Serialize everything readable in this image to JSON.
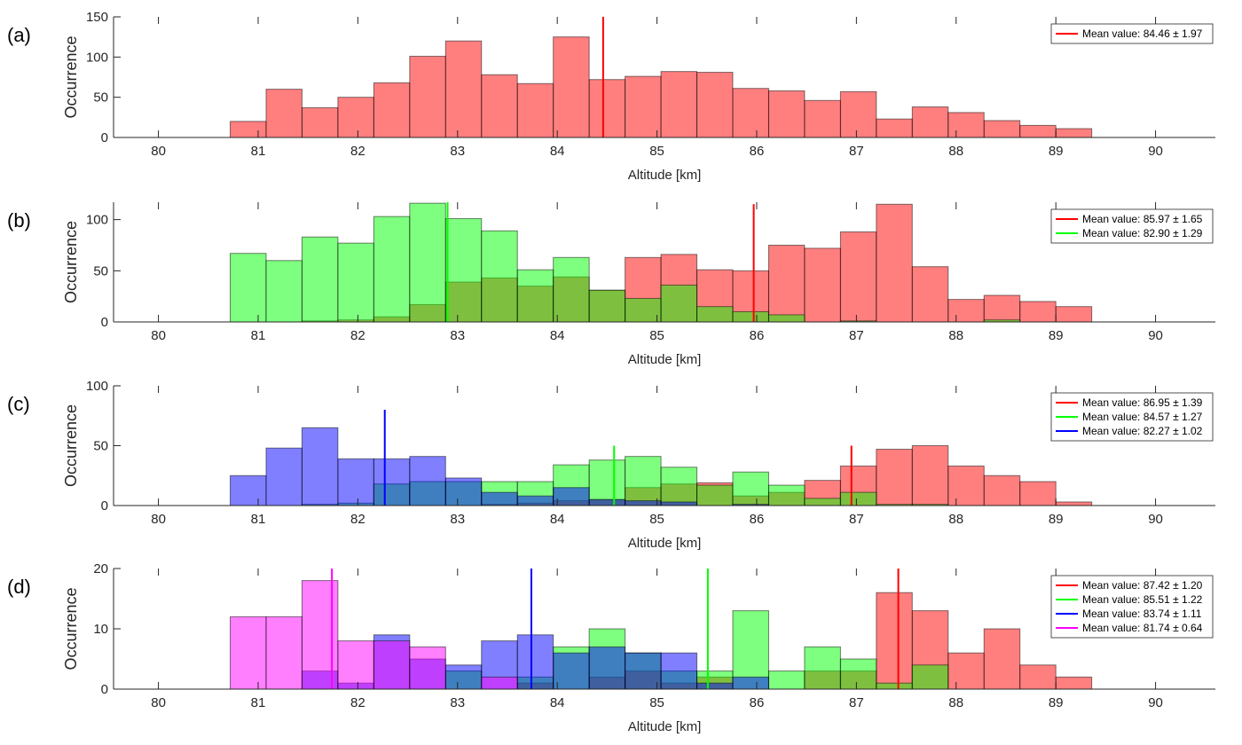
{
  "chart_data": [
    {
      "type": "bar",
      "panel_label": "(a)",
      "xlabel": "Altitude [km]",
      "ylabel": "Occurrence",
      "xlim": [
        79.55,
        90.6
      ],
      "ylim": [
        0,
        150
      ],
      "x_ticks": [
        80,
        81,
        82,
        83,
        84,
        85,
        86,
        87,
        88,
        89,
        90
      ],
      "y_ticks": [
        0,
        50,
        100,
        150
      ],
      "bin_start": 80.72,
      "bin_width": 0.36,
      "zero_range": [
        79.64,
        89.72
      ],
      "legend_position": "top-right",
      "series": [
        {
          "name": "Mean value: 84.46 ± 1.97",
          "color": "#ff0000",
          "mean": 84.46,
          "mean_line_top": 150,
          "values": [
            20,
            60,
            37,
            50,
            68,
            101,
            120,
            78,
            67,
            125,
            72,
            76,
            82,
            81,
            61,
            58,
            46,
            57,
            23,
            38,
            31,
            21,
            15,
            11
          ]
        }
      ]
    },
    {
      "type": "bar",
      "panel_label": "(b)",
      "xlabel": "Altitude [km]",
      "ylabel": "Occurrence",
      "xlim": [
        79.55,
        90.6
      ],
      "ylim": [
        0,
        117
      ],
      "x_ticks": [
        80,
        81,
        82,
        83,
        84,
        85,
        86,
        87,
        88,
        89,
        90
      ],
      "y_ticks": [
        0,
        50,
        100
      ],
      "bin_start": 80.72,
      "bin_width": 0.36,
      "zero_range": [
        79.64,
        89.72
      ],
      "legend_position": "top-right",
      "series": [
        {
          "name": "Mean value: 85.97 ± 1.65",
          "color": "#ff0000",
          "mean": 85.97,
          "mean_line_top": 115,
          "values": [
            0,
            0,
            1,
            2,
            5,
            17,
            39,
            43,
            35,
            44,
            31,
            63,
            66,
            51,
            50,
            75,
            72,
            88,
            115,
            54,
            22,
            26,
            20,
            15
          ]
        },
        {
          "name": "Mean value: 82.90 ± 1.29",
          "color": "#00ff00",
          "mean": 82.9,
          "mean_line_top": 117,
          "values": [
            67,
            60,
            83,
            77,
            103,
            116,
            101,
            89,
            51,
            63,
            31,
            23,
            36,
            15,
            10,
            7,
            0,
            1,
            0,
            0,
            0,
            2,
            0,
            0
          ]
        }
      ]
    },
    {
      "type": "bar",
      "panel_label": "(c)",
      "xlabel": "Altitude [km]",
      "ylabel": "Occurrence",
      "xlim": [
        79.55,
        90.6
      ],
      "ylim": [
        0,
        100
      ],
      "x_ticks": [
        80,
        81,
        82,
        83,
        84,
        85,
        86,
        87,
        88,
        89,
        90
      ],
      "y_ticks": [
        0,
        50,
        100
      ],
      "bin_start": 80.72,
      "bin_width": 0.36,
      "zero_range": [
        79.64,
        89.72
      ],
      "legend_position": "top-right",
      "series": [
        {
          "name": "Mean value: 86.95 ± 1.39",
          "color": "#ff0000",
          "mean": 86.95,
          "mean_line_top": 50,
          "values": [
            0,
            0,
            0,
            0,
            0,
            0,
            0,
            1,
            2,
            4,
            5,
            15,
            18,
            19,
            8,
            11,
            21,
            33,
            47,
            50,
            33,
            25,
            20,
            3
          ]
        },
        {
          "name": "Mean value: 84.57 ± 1.27",
          "color": "#00ff00",
          "mean": 84.57,
          "mean_line_top": 50,
          "values": [
            0,
            0,
            1,
            2,
            18,
            20,
            20,
            20,
            20,
            34,
            38,
            41,
            32,
            17,
            28,
            17,
            6,
            11,
            1,
            1,
            0,
            0,
            0,
            0
          ]
        },
        {
          "name": "Mean value: 82.27 ± 1.02",
          "color": "#0000ff",
          "mean": 82.27,
          "mean_line_top": 80,
          "values": [
            25,
            48,
            65,
            39,
            39,
            41,
            23,
            11,
            8,
            15,
            5,
            4,
            3,
            0,
            1,
            0,
            0,
            0,
            0,
            0,
            0,
            0,
            0,
            0
          ]
        }
      ]
    },
    {
      "type": "bar",
      "panel_label": "(d)",
      "xlabel": "Altitude [km]",
      "ylabel": "Occurrence",
      "xlim": [
        79.55,
        90.6
      ],
      "ylim": [
        0,
        20
      ],
      "x_ticks": [
        80,
        81,
        82,
        83,
        84,
        85,
        86,
        87,
        88,
        89,
        90
      ],
      "y_ticks": [
        0,
        10,
        20
      ],
      "bin_start": 80.72,
      "bin_width": 0.36,
      "zero_range": [
        79.64,
        89.72
      ],
      "legend_position": "top-right",
      "series": [
        {
          "name": "Mean value: 87.42 ± 1.20",
          "color": "#ff0000",
          "mean": 87.42,
          "mean_line_top": 20,
          "values": [
            0,
            0,
            0,
            0,
            0,
            0,
            0,
            0,
            1,
            0,
            2,
            3,
            1,
            2,
            0,
            0,
            3,
            3,
            16,
            13,
            6,
            10,
            4,
            2
          ]
        },
        {
          "name": "Mean value: 85.51 ± 1.22",
          "color": "#00ff00",
          "mean": 85.51,
          "mean_line_top": 20,
          "values": [
            0,
            0,
            0,
            0,
            0,
            0,
            3,
            0,
            2,
            7,
            10,
            6,
            3,
            3,
            13,
            3,
            7,
            5,
            1,
            4,
            0,
            0,
            0,
            0
          ]
        },
        {
          "name": "Mean value: 83.74 ± 1.11",
          "color": "#0000ff",
          "mean": 83.74,
          "mean_line_top": 20,
          "values": [
            0,
            0,
            3,
            1,
            9,
            5,
            4,
            8,
            9,
            6,
            7,
            6,
            6,
            1,
            2,
            0,
            0,
            0,
            0,
            0,
            0,
            0,
            0,
            0
          ]
        },
        {
          "name": "Mean value: 81.74 ± 0.64",
          "color": "#ff00ff",
          "mean": 81.74,
          "mean_line_top": 20,
          "values": [
            12,
            12,
            18,
            8,
            8,
            7,
            0,
            2,
            0,
            0,
            0,
            0,
            0,
            0,
            0,
            0,
            0,
            0,
            0,
            0,
            0,
            0,
            0,
            0
          ]
        }
      ]
    }
  ]
}
